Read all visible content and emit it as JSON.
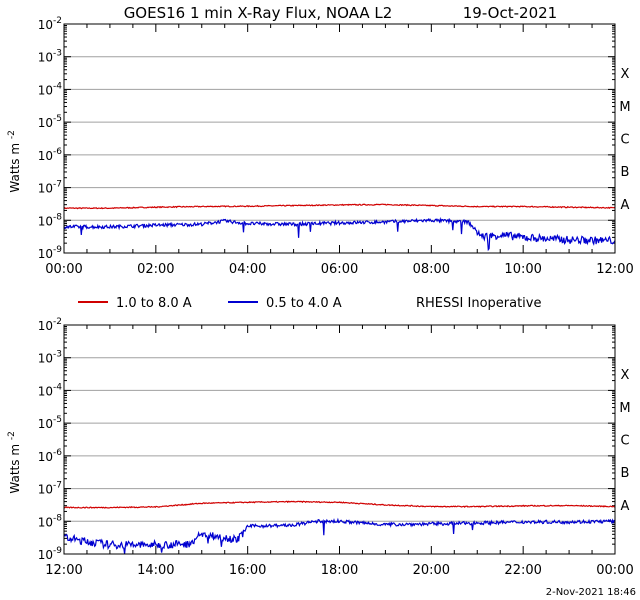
{
  "title": "GOES16 1 min X-Ray Flux, NOAA L2",
  "date": "19-Oct-2021",
  "footer_timestamp": "2-Nov-2021 18:46",
  "legend": {
    "items": [
      {
        "label": "1.0 to 8.0 A",
        "color": "#d00000"
      },
      {
        "label": "0.5 to 4.0 A",
        "color": "#0000d0"
      }
    ],
    "note": "RHESSI Inoperative"
  },
  "chart_data": [
    {
      "type": "line",
      "ylabel": "Watts m",
      "ylabel_exp": "-2",
      "yscale": "log",
      "ylim_exp": [
        -9,
        -2
      ],
      "ytick_labels": [
        {
          "base": "10",
          "exp": "-9",
          "value_exp": -9
        },
        {
          "base": "10",
          "exp": "-8",
          "value_exp": -8
        },
        {
          "base": "10",
          "exp": "-7",
          "value_exp": -7
        },
        {
          "base": "10",
          "exp": "-6",
          "value_exp": -6
        },
        {
          "base": "10",
          "exp": "-5",
          "value_exp": -5
        },
        {
          "base": "10",
          "exp": "-4",
          "value_exp": -4
        },
        {
          "base": "10",
          "exp": "-3",
          "value_exp": -3
        },
        {
          "base": "10",
          "exp": "-2",
          "value_exp": -2
        }
      ],
      "class_labels": [
        {
          "label": "A",
          "value_exp": -8
        },
        {
          "label": "B",
          "value_exp": -7
        },
        {
          "label": "C",
          "value_exp": -6
        },
        {
          "label": "M",
          "value_exp": -5
        },
        {
          "label": "X",
          "value_exp": -4
        }
      ],
      "xlim_hours": [
        0,
        12
      ],
      "xtick_labels": [
        "00:00",
        "02:00",
        "04:00",
        "06:00",
        "08:00",
        "10:00",
        "12:00"
      ],
      "series": [
        {
          "name": "1.0 to 8.0 A",
          "color": "#d00000",
          "x_hours": [
            0,
            1,
            2,
            3,
            4,
            5,
            6,
            7,
            8,
            9,
            10,
            11,
            12
          ],
          "log_flux": [
            -7.63,
            -7.63,
            -7.6,
            -7.58,
            -7.57,
            -7.55,
            -7.53,
            -7.52,
            -7.55,
            -7.58,
            -7.58,
            -7.6,
            -7.62
          ]
        },
        {
          "name": "0.5 to 4.0 A",
          "color": "#0000d0",
          "x_hours": [
            0,
            1,
            2,
            3,
            3.5,
            4,
            5,
            6,
            7,
            8,
            8.8,
            9.1,
            9.5,
            10,
            11,
            12
          ],
          "log_flux": [
            -8.2,
            -8.2,
            -8.15,
            -8.12,
            -8.02,
            -8.1,
            -8.12,
            -8.08,
            -8.05,
            -8.0,
            -8.05,
            -8.5,
            -8.45,
            -8.52,
            -8.6,
            -8.62
          ]
        }
      ]
    },
    {
      "type": "line",
      "ylabel": "Watts m",
      "ylabel_exp": "-2",
      "yscale": "log",
      "ylim_exp": [
        -9,
        -2
      ],
      "ytick_labels": [
        {
          "base": "10",
          "exp": "-9",
          "value_exp": -9
        },
        {
          "base": "10",
          "exp": "-8",
          "value_exp": -8
        },
        {
          "base": "10",
          "exp": "-7",
          "value_exp": -7
        },
        {
          "base": "10",
          "exp": "-6",
          "value_exp": -6
        },
        {
          "base": "10",
          "exp": "-5",
          "value_exp": -5
        },
        {
          "base": "10",
          "exp": "-4",
          "value_exp": -4
        },
        {
          "base": "10",
          "exp": "-3",
          "value_exp": -3
        },
        {
          "base": "10",
          "exp": "-2",
          "value_exp": -2
        }
      ],
      "class_labels": [
        {
          "label": "A",
          "value_exp": -8
        },
        {
          "label": "B",
          "value_exp": -7
        },
        {
          "label": "C",
          "value_exp": -6
        },
        {
          "label": "M",
          "value_exp": -5
        },
        {
          "label": "X",
          "value_exp": -4
        }
      ],
      "xlim_hours": [
        12,
        24
      ],
      "xtick_labels": [
        "12:00",
        "14:00",
        "16:00",
        "18:00",
        "20:00",
        "22:00",
        "00:00"
      ],
      "series": [
        {
          "name": "1.0 to 8.0 A",
          "color": "#d00000",
          "x_hours": [
            12,
            13,
            14,
            15,
            16,
            17,
            18,
            19,
            20,
            21,
            22,
            23,
            24
          ],
          "log_flux": [
            -7.58,
            -7.58,
            -7.56,
            -7.45,
            -7.42,
            -7.4,
            -7.42,
            -7.5,
            -7.55,
            -7.55,
            -7.53,
            -7.52,
            -7.55
          ]
        },
        {
          "name": "0.5 to 4.0 A",
          "color": "#0000d0",
          "x_hours": [
            12,
            12.5,
            13,
            14,
            14.7,
            15,
            15.8,
            16,
            17,
            17.5,
            18,
            19,
            20,
            21,
            22,
            23,
            24
          ],
          "log_flux": [
            -8.5,
            -8.62,
            -8.72,
            -8.72,
            -8.7,
            -8.4,
            -8.55,
            -8.15,
            -8.12,
            -8.0,
            -8.0,
            -8.1,
            -8.08,
            -8.05,
            -8.02,
            -8.02,
            -8.0
          ]
        }
      ]
    }
  ]
}
